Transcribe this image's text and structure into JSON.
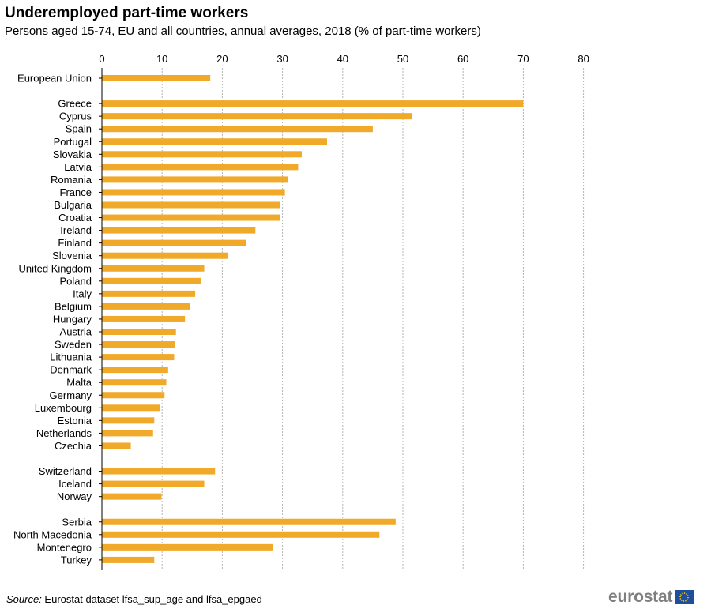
{
  "chart_data": {
    "type": "bar",
    "orientation": "horizontal",
    "title": "Underemployed part-time workers",
    "subtitle": "Persons aged 15-74, EU and all countries, annual averages, 2018 (% of part-time workers)",
    "xlim": [
      0,
      80
    ],
    "ticks": [
      "0",
      "10",
      "20",
      "30",
      "40",
      "50",
      "60",
      "70",
      "80"
    ],
    "grid": "dashed vertical",
    "bar_color": "#f0a929",
    "groups": [
      {
        "categories": [
          "European Union"
        ],
        "values": [
          18.0
        ]
      },
      {
        "categories": [
          "Greece",
          "Cyprus",
          "Spain",
          "Portugal",
          "Slovakia",
          "Latvia",
          "Romania",
          "France",
          "Bulgaria",
          "Croatia",
          "Ireland",
          "Finland",
          "Slovenia",
          "United Kingdom",
          "Poland",
          "Italy",
          "Belgium",
          "Hungary",
          "Austria",
          "Sweden",
          "Lithuania",
          "Denmark",
          "Malta",
          "Germany",
          "Luxembourg",
          "Estonia",
          "Netherlands",
          "Czechia"
        ],
        "values": [
          70.0,
          51.5,
          45.0,
          37.4,
          33.2,
          32.6,
          30.9,
          30.4,
          29.6,
          29.6,
          25.5,
          24.0,
          21.0,
          17.0,
          16.4,
          15.5,
          14.6,
          13.8,
          12.3,
          12.2,
          12.0,
          11.0,
          10.7,
          10.4,
          9.6,
          8.7,
          8.5,
          4.8
        ]
      },
      {
        "categories": [
          "Switzerland",
          "Iceland",
          "Norway"
        ],
        "values": [
          18.8,
          17.0,
          9.9
        ]
      },
      {
        "categories": [
          "Serbia",
          "North Macedonia",
          "Montenegro",
          "Turkey"
        ],
        "values": [
          48.8,
          46.1,
          28.4,
          8.7
        ]
      }
    ]
  },
  "footer": {
    "source_label": "Source:",
    "source_text": " Eurostat dataset lfsa_sup_age and lfsa_epgaed",
    "logo_text": "eurostat"
  }
}
